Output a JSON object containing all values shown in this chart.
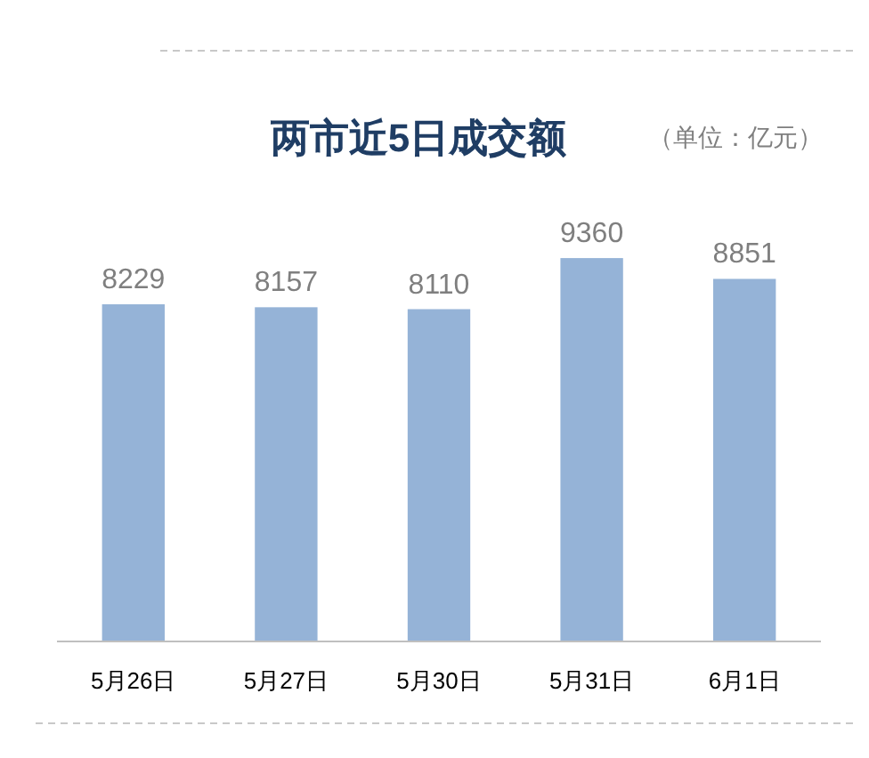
{
  "chart_data": {
    "type": "bar",
    "title": "两市近5日成交额",
    "subtitle": "（单位：亿元）",
    "categories": [
      "5月26日",
      "5月27日",
      "5月30日",
      "5月31日",
      "6月1日"
    ],
    "values": [
      8229,
      8157,
      8110,
      9360,
      8851
    ],
    "color": "#95b3d7",
    "data_labels": true
  }
}
